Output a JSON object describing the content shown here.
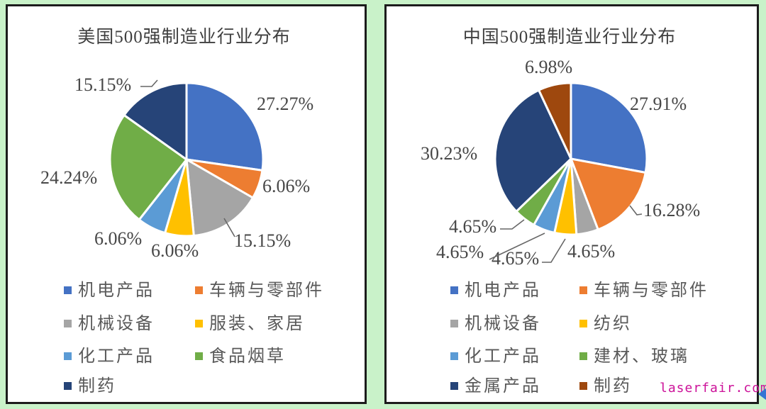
{
  "page": {
    "background_color": "#c9f2c9",
    "panel_background": "#ffffff",
    "panel_border_color": "#1c1c1c",
    "watermark": "laserfair.com",
    "watermark_color": "#cc1199",
    "corner_icon": "left-arrow-icon",
    "corner_icon_color": "#3575d4"
  },
  "chart_data": [
    {
      "type": "pie",
      "title": "美国500强制造业行业分布",
      "legend_position": "bottom",
      "start_angle_deg": 0,
      "direction": "clockwise",
      "slices": [
        {
          "label": "机电产品",
          "value": 27.27,
          "pct_label": "27.27%",
          "color": "#4472C4"
        },
        {
          "label": "车辆与零部件",
          "value": 6.06,
          "pct_label": "6.06%",
          "color": "#ED7D31"
        },
        {
          "label": "机械设备",
          "value": 15.15,
          "pct_label": "15.15%",
          "color": "#A5A5A5"
        },
        {
          "label": "服装、家居",
          "value": 6.06,
          "pct_label": "6.06%",
          "color": "#FFC000"
        },
        {
          "label": "化工产品",
          "value": 6.06,
          "pct_label": "6.06%",
          "color": "#5B9BD5"
        },
        {
          "label": "食品烟草",
          "value": 24.24,
          "pct_label": "24.24%",
          "color": "#70AD47"
        },
        {
          "label": "制药",
          "value": 15.15,
          "pct_label": "15.15%",
          "color": "#264478"
        }
      ]
    },
    {
      "type": "pie",
      "title": "中国500强制造业行业分布",
      "legend_position": "bottom",
      "start_angle_deg": 0,
      "direction": "clockwise",
      "slices": [
        {
          "label": "机电产品",
          "value": 27.91,
          "pct_label": "27.91%",
          "color": "#4472C4"
        },
        {
          "label": "车辆与零部件",
          "value": 16.28,
          "pct_label": "16.28%",
          "color": "#ED7D31"
        },
        {
          "label": "机械设备",
          "value": 4.65,
          "pct_label": "4.65%",
          "color": "#A5A5A5"
        },
        {
          "label": "纺织",
          "value": 4.65,
          "pct_label": "4.65%",
          "color": "#FFC000"
        },
        {
          "label": "化工产品",
          "value": 4.65,
          "pct_label": "4.65%",
          "color": "#5B9BD5"
        },
        {
          "label": "建材、玻璃",
          "value": 4.65,
          "pct_label": "4.65%",
          "color": "#70AD47"
        },
        {
          "label": "金属产品",
          "value": 30.23,
          "pct_label": "30.23%",
          "color": "#264478"
        },
        {
          "label": "制药",
          "value": 6.98,
          "pct_label": "6.98%",
          "color": "#9E480E"
        }
      ]
    }
  ]
}
